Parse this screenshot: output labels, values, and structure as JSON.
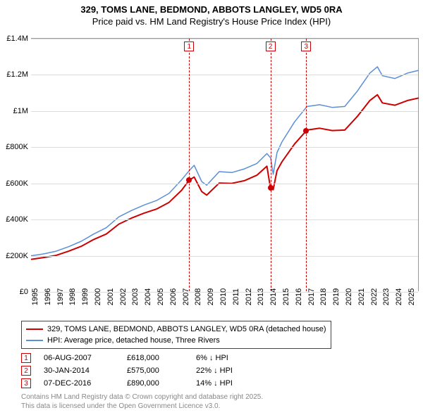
{
  "title_line1": "329, TOMS LANE, BEDMOND, ABBOTS LANGLEY, WD5 0RA",
  "title_line2": "Price paid vs. HM Land Registry's House Price Index (HPI)",
  "chart": {
    "type": "line",
    "xlim": [
      1995,
      2025.9
    ],
    "ylim": [
      0,
      1400000
    ],
    "ytick_step": 200000,
    "ytick_labels": [
      "£0",
      "£200K",
      "£400K",
      "£600K",
      "£800K",
      "£1M",
      "£1.2M",
      "£1.4M"
    ],
    "x_ticks": [
      1995,
      1996,
      1997,
      1998,
      1999,
      2000,
      2001,
      2002,
      2003,
      2004,
      2005,
      2006,
      2007,
      2008,
      2009,
      2010,
      2011,
      2012,
      2013,
      2014,
      2015,
      2016,
      2017,
      2018,
      2019,
      2020,
      2021,
      2022,
      2023,
      2024,
      2025
    ],
    "grid_color": "#dddddd",
    "background_color": "#ffffff",
    "series": [
      {
        "name": "hpi",
        "label": "HPI: Average price, detached house, Three Rivers",
        "color": "#5b8fd6",
        "line_width": 1.5,
        "points": [
          [
            1995,
            200000
          ],
          [
            1996,
            210000
          ],
          [
            1997,
            225000
          ],
          [
            1998,
            250000
          ],
          [
            1999,
            280000
          ],
          [
            2000,
            320000
          ],
          [
            2001,
            355000
          ],
          [
            2002,
            415000
          ],
          [
            2003,
            450000
          ],
          [
            2004,
            480000
          ],
          [
            2005,
            505000
          ],
          [
            2006,
            545000
          ],
          [
            2007,
            620000
          ],
          [
            2007.6,
            670000
          ],
          [
            2008,
            700000
          ],
          [
            2008.6,
            610000
          ],
          [
            2009,
            590000
          ],
          [
            2010,
            665000
          ],
          [
            2011,
            660000
          ],
          [
            2012,
            680000
          ],
          [
            2013,
            710000
          ],
          [
            2013.8,
            765000
          ],
          [
            2014.1,
            740000
          ],
          [
            2014.3,
            650000
          ],
          [
            2014.6,
            770000
          ],
          [
            2015,
            830000
          ],
          [
            2016,
            940000
          ],
          [
            2016.93,
            1020000
          ],
          [
            2017,
            1025000
          ],
          [
            2018,
            1035000
          ],
          [
            2019,
            1020000
          ],
          [
            2020,
            1025000
          ],
          [
            2021,
            1110000
          ],
          [
            2022,
            1210000
          ],
          [
            2022.6,
            1245000
          ],
          [
            2023,
            1195000
          ],
          [
            2024,
            1180000
          ],
          [
            2025,
            1210000
          ],
          [
            2025.9,
            1225000
          ]
        ]
      },
      {
        "name": "price_paid",
        "label": "329, TOMS LANE, BEDMOND, ABBOTS LANGLEY, WD5 0RA (detached house)",
        "color": "#cc0000",
        "line_width": 2,
        "points": [
          [
            1995,
            180000
          ],
          [
            1996,
            190000
          ],
          [
            1997,
            202000
          ],
          [
            1998,
            225000
          ],
          [
            1999,
            252000
          ],
          [
            2000,
            290000
          ],
          [
            2001,
            320000
          ],
          [
            2002,
            375000
          ],
          [
            2003,
            408000
          ],
          [
            2004,
            435000
          ],
          [
            2005,
            458000
          ],
          [
            2006,
            495000
          ],
          [
            2007,
            562000
          ],
          [
            2007.6,
            618000
          ],
          [
            2008,
            635000
          ],
          [
            2008.6,
            555000
          ],
          [
            2009,
            535000
          ],
          [
            2010,
            602000
          ],
          [
            2011,
            600000
          ],
          [
            2012,
            615000
          ],
          [
            2013,
            645000
          ],
          [
            2013.8,
            695000
          ],
          [
            2014.08,
            575000
          ],
          [
            2014.3,
            565000
          ],
          [
            2014.6,
            670000
          ],
          [
            2015,
            720000
          ],
          [
            2016,
            818000
          ],
          [
            2016.93,
            890000
          ],
          [
            2017,
            895000
          ],
          [
            2018,
            905000
          ],
          [
            2019,
            892000
          ],
          [
            2020,
            895000
          ],
          [
            2021,
            970000
          ],
          [
            2022,
            1058000
          ],
          [
            2022.6,
            1090000
          ],
          [
            2023,
            1045000
          ],
          [
            2024,
            1032000
          ],
          [
            2025,
            1058000
          ],
          [
            2025.9,
            1072000
          ]
        ]
      }
    ],
    "sale_markers": [
      {
        "n": "1",
        "x": 2007.6,
        "price": 618000
      },
      {
        "n": "2",
        "x": 2014.08,
        "price": 575000
      },
      {
        "n": "3",
        "x": 2016.93,
        "price": 890000
      }
    ],
    "marker_color": "#cc0000"
  },
  "legend": {
    "border_color": "#444444",
    "items": [
      {
        "color": "#cc0000",
        "label": "329, TOMS LANE, BEDMOND, ABBOTS LANGLEY, WD5 0RA (detached house)"
      },
      {
        "color": "#5b8fd6",
        "label": "HPI: Average price, detached house, Three Rivers"
      }
    ]
  },
  "transactions": [
    {
      "n": "1",
      "date": "06-AUG-2007",
      "price": "£618,000",
      "pct": "6% ↓ HPI"
    },
    {
      "n": "2",
      "date": "30-JAN-2014",
      "price": "£575,000",
      "pct": "22% ↓ HPI"
    },
    {
      "n": "3",
      "date": "07-DEC-2016",
      "price": "£890,000",
      "pct": "14% ↓ HPI"
    }
  ],
  "attribution": {
    "line1": "Contains HM Land Registry data © Crown copyright and database right 2025.",
    "line2": "This data is licensed under the Open Government Licence v3.0."
  }
}
